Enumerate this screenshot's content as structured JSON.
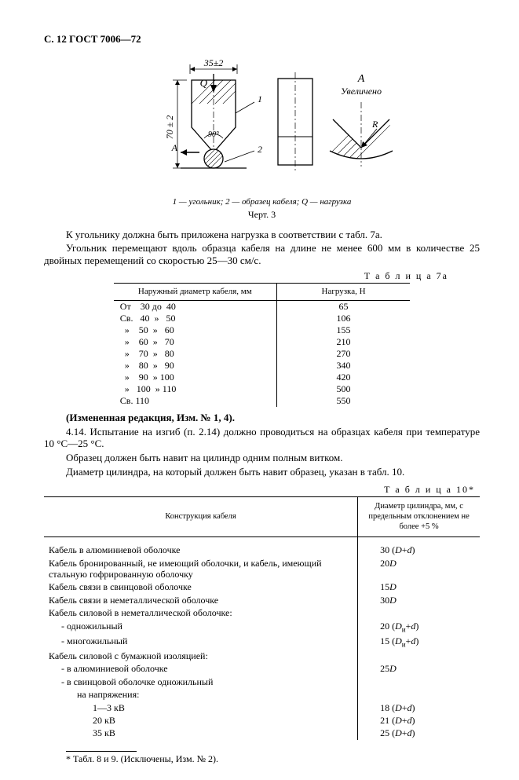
{
  "header": "С. 12 ГОСТ 7006—72",
  "figure": {
    "dim_top": "35±2",
    "dim_left": "70 ± 2",
    "label_Q": "Q",
    "angle": "90°",
    "callout_1": "1",
    "callout_2": "2",
    "label_A_left": "A",
    "label_A_right": "A",
    "label_enlarged": "Увеличено",
    "label_R": "R",
    "legend": "1 — угольник; 2 — образец кабеля; Q — нагрузка",
    "number": "Черт. 3",
    "stroke": "#000000",
    "hatch": "#000000"
  },
  "para1": "К угольнику должна быть приложена нагрузка в соответствии с табл. 7а.",
  "para2": "Угольник перемещают вдоль образца кабеля на длине не менее 600 мм в количестве 25 двойных перемещений со скоростью 25—30 см/с.",
  "table7a": {
    "label": "Т а б л и ц а  7а",
    "col1": "Наружный диаметр кабеля, мм",
    "col2": "Нагрузка, Н",
    "rows": [
      {
        "d": "От    30 до  40",
        "n": "65"
      },
      {
        "d": "Св.   40  »   50",
        "n": "106"
      },
      {
        "d": "  »    50  »   60",
        "n": "155"
      },
      {
        "d": "  »    60  »   70",
        "n": "210"
      },
      {
        "d": "  »    70  »   80",
        "n": "270"
      },
      {
        "d": "  »    80  »   90",
        "n": "340"
      },
      {
        "d": "  »    90  » 100",
        "n": "420"
      },
      {
        "d": "  »   100  » 110",
        "n": "500"
      },
      {
        "d": "Св. 110",
        "n": "550"
      }
    ]
  },
  "para3": "(Измененная редакция, Изм. № 1, 4).",
  "para4": "4.14. Испытание на изгиб (п. 2.14) должно проводиться на образцах кабеля при температуре 10 °С—25 °С.",
  "para5": "Образец должен быть навит на цилиндр одним полным витком.",
  "para6": "Диаметр цилиндра, на который должен быть навит образец, указан в табл. 10.",
  "table10": {
    "label": "Т а б л и ц а  10*",
    "col1": "Конструкция кабеля",
    "col2": "Диаметр цилиндра, мм, с предельным отклонением не более +5 %",
    "rows": [
      {
        "desc": "Кабель в алюминиевой оболочке",
        "val": "30 (D+d)"
      },
      {
        "desc": "Кабель бронированный, не имеющий оболочки, и кабель, имеющий стальную гофрированную оболочку",
        "val": "20D"
      },
      {
        "desc": "Кабель связи в свинцовой оболочке",
        "val": "15D"
      },
      {
        "desc": "Кабель связи в неметаллической оболочке",
        "val": "30D"
      },
      {
        "desc": "Кабель силовой в неметаллической оболочке:",
        "val": ""
      },
      {
        "desc_indent": 1,
        "desc": "- одножильный",
        "val": "20 (Dи+d)"
      },
      {
        "desc_indent": 1,
        "desc": "- многожильный",
        "val": "15 (Dи+d)"
      },
      {
        "desc": "Кабель силовой с бумажной изоляцией:",
        "val": ""
      },
      {
        "desc_indent": 1,
        "desc": "- в алюминиевой оболочке",
        "val": "25D"
      },
      {
        "desc_indent": 1,
        "desc": "- в свинцовой оболочке одножильный",
        "val": ""
      },
      {
        "desc_indent": 2,
        "desc": "на напряжения:",
        "val": ""
      },
      {
        "desc_indent": 3,
        "desc": "1—3 кВ",
        "val": "18 (D+d)"
      },
      {
        "desc_indent": 3,
        "desc": "20 кВ",
        "val": "21 (D+d)"
      },
      {
        "desc_indent": 3,
        "desc": "35 кВ",
        "val": "25 (D+d)"
      }
    ]
  },
  "footnote": "* Табл. 8 и 9. (Исключены, Изм. № 2)."
}
